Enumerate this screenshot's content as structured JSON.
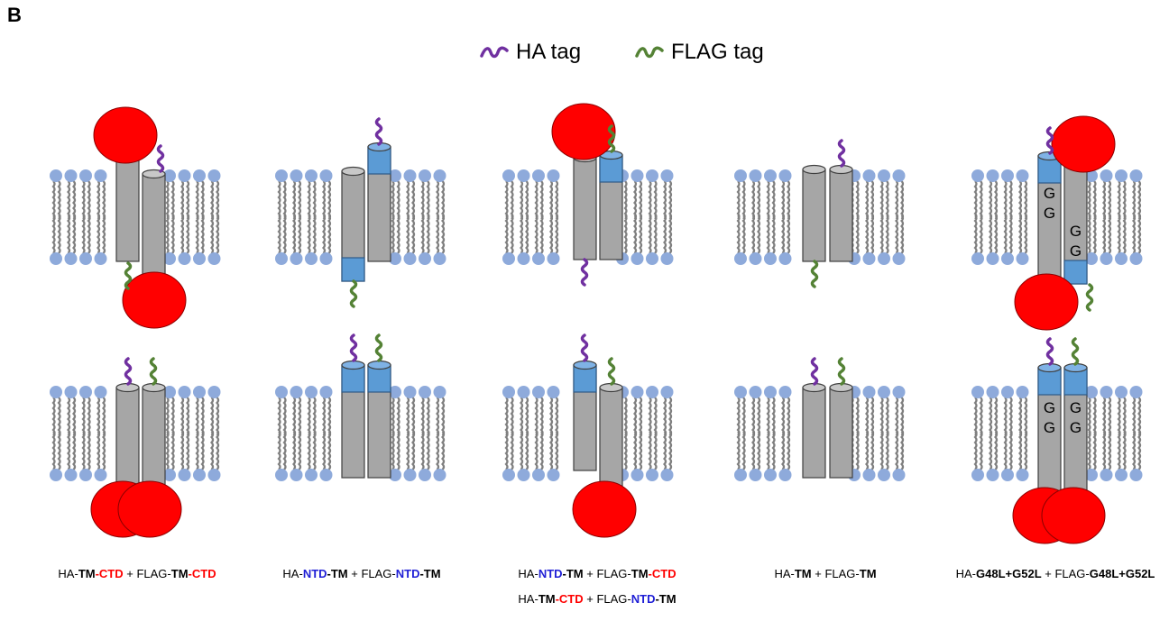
{
  "panel_label": "B",
  "legend": {
    "ha": {
      "label": "HA tag",
      "color": "#7030a0",
      "icon": "ha-tag-icon"
    },
    "flag": {
      "label": "FLAG tag",
      "color": "#548235",
      "icon": "flag-tag-icon"
    }
  },
  "colors": {
    "domain_red": "#ff0000",
    "ntd_blue": "#5b9bd5",
    "helix_gray": "#a6a6a6",
    "lipid_head": "#8eaadb",
    "lipid_tail": "#7f7f7f",
    "text_red": "#ff0000",
    "text_blue": "#1f1fd6"
  },
  "gg_letter": "G",
  "captions": [
    {
      "lines": [
        [
          {
            "t": "HA-",
            "s": "n"
          },
          {
            "t": "TM",
            "s": "b"
          },
          {
            "t": "-CTD",
            "s": "r"
          },
          {
            "t": " + FLAG-",
            "s": "n"
          },
          {
            "t": "TM",
            "s": "b"
          },
          {
            "t": "-CTD",
            "s": "r"
          }
        ]
      ]
    },
    {
      "lines": [
        [
          {
            "t": "HA-",
            "s": "n"
          },
          {
            "t": "NTD",
            "s": "u"
          },
          {
            "t": "-TM",
            "s": "b"
          },
          {
            "t": " + FLAG-",
            "s": "n"
          },
          {
            "t": "NTD",
            "s": "u"
          },
          {
            "t": "-TM",
            "s": "b"
          }
        ]
      ]
    },
    {
      "lines": [
        [
          {
            "t": "HA-",
            "s": "n"
          },
          {
            "t": "NTD",
            "s": "u"
          },
          {
            "t": "-TM",
            "s": "b"
          },
          {
            "t": " + FLAG-",
            "s": "n"
          },
          {
            "t": "TM",
            "s": "b"
          },
          {
            "t": "-CTD",
            "s": "r"
          }
        ],
        [
          {
            "t": "HA-",
            "s": "n"
          },
          {
            "t": "TM",
            "s": "b"
          },
          {
            "t": "-CTD",
            "s": "r"
          },
          {
            "t": " + FLAG-",
            "s": "n"
          },
          {
            "t": "NTD",
            "s": "u"
          },
          {
            "t": "-TM",
            "s": "b"
          }
        ]
      ]
    },
    {
      "lines": [
        [
          {
            "t": "HA-",
            "s": "n"
          },
          {
            "t": "TM",
            "s": "b"
          },
          {
            "t": " + FLAG-",
            "s": "n"
          },
          {
            "t": "TM",
            "s": "b"
          }
        ]
      ]
    },
    {
      "lines": [
        [
          {
            "t": "HA-",
            "s": "n"
          },
          {
            "t": "G48L+G52L",
            "s": "b"
          },
          {
            "t": " + FLAG-",
            "s": "n"
          },
          {
            "t": "G48L+G52L",
            "s": "b"
          }
        ]
      ]
    }
  ]
}
